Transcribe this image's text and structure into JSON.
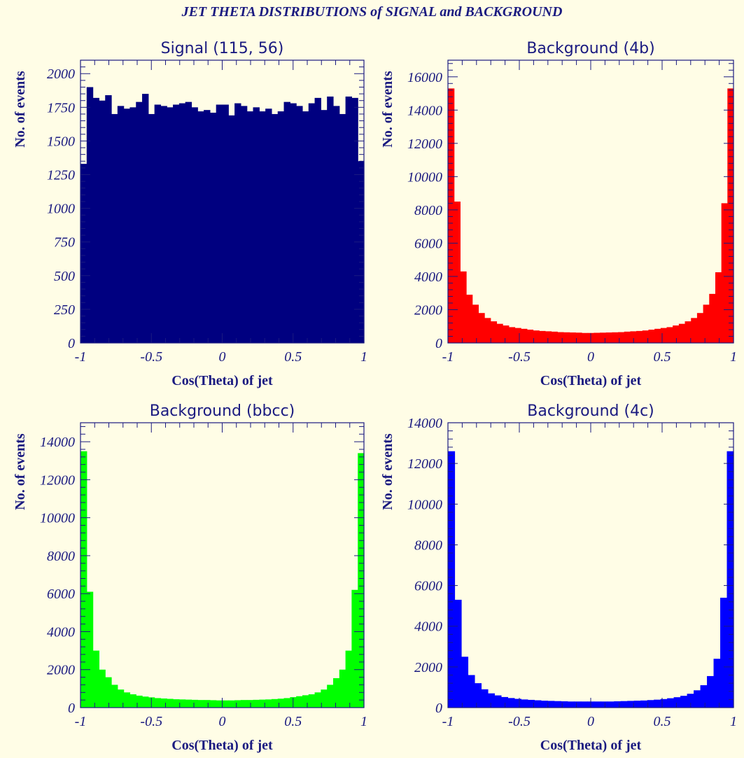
{
  "header": {
    "title": "JET THETA DISTRIBUTIONS of SIGNAL and BACKGROUND"
  },
  "colors": {
    "background": "#fffde6",
    "text": "#1a1a80",
    "axis": "#1a1a80"
  },
  "chart_data": [
    {
      "type": "bar",
      "title": "Signal (115, 56)",
      "xlabel": "Cos(Theta) of jet",
      "ylabel": "No. of events",
      "xlim": [
        -1,
        1
      ],
      "ylim": [
        0,
        2100
      ],
      "xticks": [
        "-1",
        "-0.5",
        "0",
        "0.5",
        "1"
      ],
      "yticks": [
        "0",
        "250",
        "500",
        "750",
        "1000",
        "1250",
        "1500",
        "1750",
        "2000"
      ],
      "bin_width": 0.04,
      "color": "#000080",
      "values": [
        1330,
        1900,
        1820,
        1800,
        1840,
        1700,
        1760,
        1740,
        1750,
        1790,
        1850,
        1700,
        1770,
        1760,
        1750,
        1770,
        1780,
        1790,
        1750,
        1720,
        1730,
        1710,
        1770,
        1770,
        1690,
        1780,
        1760,
        1720,
        1750,
        1720,
        1740,
        1700,
        1720,
        1790,
        1780,
        1760,
        1720,
        1780,
        1820,
        1730,
        1830,
        1760,
        1700,
        1830,
        1820,
        1350
      ]
    },
    {
      "type": "bar",
      "title": "Background (4b)",
      "xlabel": "Cos(Theta) of jet",
      "ylabel": "No. of events",
      "xlim": [
        -1,
        1
      ],
      "ylim": [
        0,
        17000
      ],
      "xticks": [
        "-1",
        "-0.5",
        "0",
        "0.5",
        "1"
      ],
      "yticks": [
        "0",
        "2000",
        "4000",
        "6000",
        "8000",
        "10000",
        "12000",
        "14000",
        "16000"
      ],
      "bin_width": 0.04,
      "color": "#ff0000",
      "values": [
        15300,
        8500,
        4300,
        2900,
        2300,
        1800,
        1500,
        1300,
        1150,
        1050,
        950,
        900,
        850,
        800,
        750,
        720,
        700,
        680,
        650,
        640,
        630,
        620,
        600,
        600,
        610,
        620,
        630,
        640,
        650,
        680,
        700,
        720,
        750,
        800,
        850,
        900,
        950,
        1050,
        1150,
        1300,
        1500,
        1800,
        2300,
        2950,
        4250,
        8400,
        15300
      ]
    },
    {
      "type": "bar",
      "title": "Background (bbcc)",
      "xlabel": "Cos(Theta) of jet",
      "ylabel": "No. of events",
      "xlim": [
        -1,
        1
      ],
      "ylim": [
        0,
        15000
      ],
      "xticks": [
        "-1",
        "-0.5",
        "0",
        "0.5",
        "1"
      ],
      "yticks": [
        "0",
        "2000",
        "4000",
        "6000",
        "8000",
        "10000",
        "12000",
        "14000"
      ],
      "bin_width": 0.04,
      "color": "#00ff00",
      "values": [
        13500,
        6100,
        3000,
        2000,
        1600,
        1200,
        950,
        800,
        700,
        630,
        580,
        540,
        500,
        480,
        460,
        440,
        430,
        420,
        410,
        400,
        400,
        390,
        380,
        380,
        380,
        390,
        400,
        400,
        410,
        420,
        430,
        450,
        470,
        500,
        550,
        600,
        650,
        700,
        800,
        950,
        1200,
        1550,
        2000,
        3000,
        6200,
        13400
      ]
    },
    {
      "type": "bar",
      "title": "Background (4c)",
      "xlabel": "Cos(Theta) of jet",
      "ylabel": "No. of events",
      "xlim": [
        -1,
        1
      ],
      "ylim": [
        0,
        14000
      ],
      "xticks": [
        "-1",
        "-0.5",
        "0",
        "0.5",
        "1"
      ],
      "yticks": [
        "0",
        "2000",
        "4000",
        "6000",
        "8000",
        "10000",
        "12000",
        "14000"
      ],
      "bin_width": 0.04,
      "color": "#0000ff",
      "values": [
        12600,
        5300,
        2500,
        1600,
        1200,
        900,
        700,
        600,
        520,
        470,
        430,
        400,
        380,
        360,
        340,
        330,
        320,
        310,
        300,
        300,
        300,
        300,
        300,
        300,
        300,
        310,
        320,
        330,
        340,
        350,
        370,
        390,
        420,
        460,
        510,
        580,
        680,
        850,
        1100,
        1550,
        2400,
        5400,
        12600
      ]
    }
  ]
}
